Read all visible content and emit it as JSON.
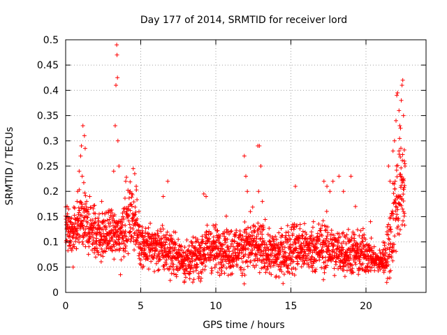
{
  "chart_data": {
    "type": "scatter",
    "title": "Day 177 of 2014, SRMTID for receiver lord",
    "xlabel": "GPS time / hours",
    "ylabel": "SRMTID / TECUs",
    "xlim": [
      0,
      24
    ],
    "ylim": [
      0,
      0.5
    ],
    "xticks": [
      0,
      5,
      10,
      15,
      20
    ],
    "xtick_labels": [
      "0",
      "5",
      "10",
      "15",
      "20"
    ],
    "yticks": [
      0,
      0.05,
      0.1,
      0.15,
      0.2,
      0.25,
      0.3,
      0.35,
      0.4,
      0.45,
      0.5
    ],
    "ytick_labels": [
      "0",
      "0.05",
      "0.1",
      "0.15",
      "0.2",
      "0.25",
      "0.3",
      "0.35",
      "0.4",
      "0.45",
      "0.5"
    ],
    "grid": true,
    "marker": "+",
    "series_color": "#ff0000",
    "series": [
      {
        "name": "SRMTID",
        "profile_hours": [
          0,
          0.5,
          1,
          1.5,
          2,
          2.5,
          3,
          3.5,
          4,
          4.5,
          5,
          5.5,
          6,
          6.5,
          7,
          7.5,
          8,
          8.5,
          9,
          9.5,
          10,
          10.5,
          11,
          11.5,
          12,
          12.5,
          13,
          13.5,
          14,
          14.5,
          15,
          15.5,
          16,
          16.5,
          17,
          17.5,
          18,
          18.5,
          19,
          19.5,
          20,
          20.5,
          21,
          21.5,
          22,
          22.6
        ],
        "profile_median": [
          0.13,
          0.11,
          0.14,
          0.13,
          0.12,
          0.11,
          0.12,
          0.11,
          0.14,
          0.15,
          0.1,
          0.09,
          0.09,
          0.085,
          0.08,
          0.07,
          0.065,
          0.065,
          0.075,
          0.09,
          0.085,
          0.09,
          0.08,
          0.085,
          0.09,
          0.09,
          0.085,
          0.08,
          0.075,
          0.075,
          0.09,
          0.09,
          0.085,
          0.085,
          0.09,
          0.09,
          0.08,
          0.08,
          0.08,
          0.075,
          0.08,
          0.065,
          0.06,
          0.08,
          0.18,
          0.22
        ],
        "profile_spread": [
          0.035,
          0.03,
          0.04,
          0.035,
          0.035,
          0.03,
          0.03,
          0.03,
          0.04,
          0.04,
          0.03,
          0.03,
          0.03,
          0.03,
          0.03,
          0.025,
          0.025,
          0.025,
          0.03,
          0.03,
          0.03,
          0.03,
          0.03,
          0.03,
          0.035,
          0.035,
          0.035,
          0.03,
          0.03,
          0.03,
          0.035,
          0.035,
          0.03,
          0.03,
          0.035,
          0.035,
          0.03,
          0.03,
          0.03,
          0.03,
          0.03,
          0.015,
          0.015,
          0.04,
          0.07,
          0.06
        ],
        "points": [
          [
            0.1,
            0.17
          ],
          [
            0.2,
            0.165
          ],
          [
            0.3,
            0.14
          ],
          [
            0.5,
            0.05
          ],
          [
            0.8,
            0.2
          ],
          [
            0.9,
            0.24
          ],
          [
            1.0,
            0.27
          ],
          [
            1.05,
            0.29
          ],
          [
            1.1,
            0.23
          ],
          [
            1.15,
            0.33
          ],
          [
            1.25,
            0.31
          ],
          [
            1.3,
            0.285
          ],
          [
            1.4,
            0.18
          ],
          [
            1.6,
            0.19
          ],
          [
            2.0,
            0.07
          ],
          [
            2.4,
            0.18
          ],
          [
            3.2,
            0.24
          ],
          [
            3.3,
            0.33
          ],
          [
            3.35,
            0.41
          ],
          [
            3.4,
            0.49
          ],
          [
            3.42,
            0.47
          ],
          [
            3.45,
            0.425
          ],
          [
            3.48,
            0.3
          ],
          [
            3.55,
            0.25
          ],
          [
            3.65,
            0.035
          ],
          [
            4.0,
            0.22
          ],
          [
            4.3,
            0.2
          ],
          [
            4.5,
            0.245
          ],
          [
            4.6,
            0.235
          ],
          [
            4.7,
            0.21
          ],
          [
            6.5,
            0.19
          ],
          [
            6.8,
            0.22
          ],
          [
            7.9,
            0.02
          ],
          [
            9.2,
            0.195
          ],
          [
            9.35,
            0.19
          ],
          [
            11.9,
            0.27
          ],
          [
            12.0,
            0.23
          ],
          [
            12.1,
            0.2
          ],
          [
            12.3,
            0.16
          ],
          [
            12.8,
            0.29
          ],
          [
            12.9,
            0.29
          ],
          [
            13.0,
            0.25
          ],
          [
            12.85,
            0.2
          ],
          [
            13.1,
            0.18
          ],
          [
            14.0,
            0.03
          ],
          [
            15.3,
            0.21
          ],
          [
            16.5,
            0.14
          ],
          [
            17.2,
            0.22
          ],
          [
            17.4,
            0.21
          ],
          [
            17.6,
            0.2
          ],
          [
            17.8,
            0.22
          ],
          [
            18.2,
            0.23
          ],
          [
            18.5,
            0.2
          ],
          [
            19.0,
            0.23
          ],
          [
            19.3,
            0.17
          ],
          [
            20.3,
            0.14
          ],
          [
            21.1,
            0.08
          ],
          [
            21.4,
            0.12
          ],
          [
            21.5,
            0.25
          ],
          [
            21.6,
            0.22
          ],
          [
            21.8,
            0.28
          ],
          [
            21.9,
            0.3
          ],
          [
            22.0,
            0.34
          ],
          [
            22.05,
            0.39
          ],
          [
            22.1,
            0.395
          ],
          [
            22.2,
            0.36
          ],
          [
            22.25,
            0.33
          ],
          [
            22.3,
            0.325
          ],
          [
            22.35,
            0.38
          ],
          [
            22.4,
            0.41
          ],
          [
            22.45,
            0.42
          ],
          [
            22.5,
            0.35
          ],
          [
            22.55,
            0.26
          ],
          [
            22.6,
            0.25
          ],
          [
            22.5,
            0.16
          ],
          [
            22.3,
            0.19
          ],
          [
            22.2,
            0.28
          ]
        ]
      }
    ]
  }
}
